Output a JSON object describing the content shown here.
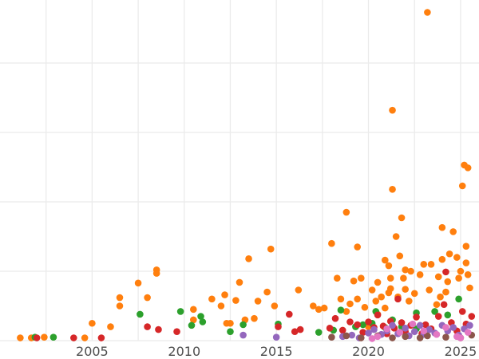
{
  "chart_data": {
    "type": "scatter",
    "title": "",
    "xlabel": "",
    "ylabel": "",
    "xlim": [
      2000.0,
      2026.0
    ],
    "ylim": [
      0,
      500
    ],
    "grid": true,
    "legend": "none",
    "x_ticks": [
      {
        "value": 2005,
        "label": "2005"
      },
      {
        "value": 2010,
        "label": "2010"
      },
      {
        "value": 2015,
        "label": "2015"
      },
      {
        "value": 2020,
        "label": "2020"
      },
      {
        "value": 2025,
        "label": "2025"
      }
    ],
    "y_gridlines": [
      0,
      100,
      200,
      300,
      400,
      500
    ],
    "series": [
      {
        "color": "#ff7f0e",
        "points": [
          [
            2001.1,
            4
          ],
          [
            2001.7,
            4
          ],
          [
            2002.4,
            5
          ],
          [
            2004.6,
            4
          ],
          [
            2005.0,
            25
          ],
          [
            2006.0,
            20
          ],
          [
            2006.5,
            50
          ],
          [
            2006.5,
            62
          ],
          [
            2007.5,
            83
          ],
          [
            2008.0,
            62
          ],
          [
            2008.5,
            102
          ],
          [
            2008.5,
            97
          ],
          [
            2010.5,
            45
          ],
          [
            2010.5,
            30
          ],
          [
            2011.5,
            60
          ],
          [
            2012.0,
            50
          ],
          [
            2012.2,
            66
          ],
          [
            2012.3,
            25
          ],
          [
            2012.5,
            25
          ],
          [
            2012.8,
            58
          ],
          [
            2013.0,
            84
          ],
          [
            2013.3,
            30
          ],
          [
            2013.5,
            118
          ],
          [
            2013.8,
            32
          ],
          [
            2014.0,
            57
          ],
          [
            2014.5,
            70
          ],
          [
            2014.7,
            132
          ],
          [
            2014.9,
            50
          ],
          [
            2016.2,
            73
          ],
          [
            2017.0,
            50
          ],
          [
            2017.3,
            45
          ],
          [
            2017.6,
            47
          ],
          [
            2018.0,
            140
          ],
          [
            2018.3,
            90
          ],
          [
            2018.5,
            60
          ],
          [
            2018.8,
            42
          ],
          [
            2018.8,
            185
          ],
          [
            2019.0,
            53
          ],
          [
            2019.2,
            86
          ],
          [
            2019.4,
            135
          ],
          [
            2019.4,
            60
          ],
          [
            2019.6,
            90
          ],
          [
            2019.8,
            48
          ],
          [
            2020.0,
            20
          ],
          [
            2020.2,
            73
          ],
          [
            2020.4,
            57
          ],
          [
            2020.5,
            38
          ],
          [
            2020.5,
            84
          ],
          [
            2020.7,
            63
          ],
          [
            2020.9,
            47
          ],
          [
            2020.9,
            116
          ],
          [
            2021.1,
            69
          ],
          [
            2021.1,
            108
          ],
          [
            2021.2,
            90
          ],
          [
            2021.2,
            75
          ],
          [
            2021.3,
            218
          ],
          [
            2021.3,
            332
          ],
          [
            2021.5,
            150
          ],
          [
            2021.6,
            63
          ],
          [
            2021.7,
            122
          ],
          [
            2021.8,
            177
          ],
          [
            2021.9,
            90
          ],
          [
            2022.0,
            74
          ],
          [
            2022.0,
            102
          ],
          [
            2022.2,
            57
          ],
          [
            2022.3,
            100
          ],
          [
            2022.5,
            68
          ],
          [
            2022.8,
            95
          ],
          [
            2023.0,
            110
          ],
          [
            2023.2,
            473
          ],
          [
            2023.3,
            73
          ],
          [
            2023.4,
            110
          ],
          [
            2023.7,
            52
          ],
          [
            2023.8,
            92
          ],
          [
            2023.9,
            63
          ],
          [
            2024.0,
            117
          ],
          [
            2024.0,
            163
          ],
          [
            2024.2,
            70
          ],
          [
            2024.3,
            85
          ],
          [
            2024.4,
            125
          ],
          [
            2024.6,
            157
          ],
          [
            2024.8,
            120
          ],
          [
            2024.9,
            90
          ],
          [
            2025.0,
            100
          ],
          [
            2025.1,
            223
          ],
          [
            2025.2,
            253
          ],
          [
            2025.3,
            136
          ],
          [
            2025.3,
            112
          ],
          [
            2025.4,
            249
          ],
          [
            2025.4,
            95
          ],
          [
            2025.5,
            76
          ]
        ]
      },
      {
        "color": "#2ca02c",
        "points": [
          [
            2001.9,
            5
          ],
          [
            2002.9,
            5
          ],
          [
            2007.6,
            38
          ],
          [
            2009.8,
            42
          ],
          [
            2010.4,
            22
          ],
          [
            2010.9,
            35
          ],
          [
            2011.0,
            27
          ],
          [
            2012.5,
            13
          ],
          [
            2013.2,
            23
          ],
          [
            2015.1,
            24
          ],
          [
            2017.3,
            12
          ],
          [
            2018.1,
            15
          ],
          [
            2018.5,
            44
          ],
          [
            2019.3,
            20
          ],
          [
            2019.7,
            23
          ],
          [
            2020.2,
            25
          ],
          [
            2020.4,
            42
          ],
          [
            2020.9,
            19
          ],
          [
            2021.3,
            30
          ],
          [
            2021.8,
            20
          ],
          [
            2022.6,
            40
          ],
          [
            2022.6,
            17
          ],
          [
            2023.6,
            42
          ],
          [
            2024.3,
            37
          ],
          [
            2024.9,
            60
          ]
        ]
      },
      {
        "color": "#d62728",
        "points": [
          [
            2002.0,
            4
          ],
          [
            2004.0,
            4
          ],
          [
            2005.5,
            4
          ],
          [
            2008.0,
            20
          ],
          [
            2008.6,
            16
          ],
          [
            2009.6,
            13
          ],
          [
            2015.1,
            20
          ],
          [
            2015.7,
            38
          ],
          [
            2016.0,
            13
          ],
          [
            2016.3,
            16
          ],
          [
            2017.9,
            18
          ],
          [
            2018.2,
            32
          ],
          [
            2018.6,
            15
          ],
          [
            2019.0,
            27
          ],
          [
            2019.4,
            23
          ],
          [
            2019.7,
            12
          ],
          [
            2020.0,
            27
          ],
          [
            2020.3,
            19
          ],
          [
            2020.5,
            37
          ],
          [
            2020.8,
            21
          ],
          [
            2021.0,
            10
          ],
          [
            2021.2,
            28
          ],
          [
            2021.4,
            18
          ],
          [
            2021.6,
            60
          ],
          [
            2021.8,
            26
          ],
          [
            2022.0,
            13
          ],
          [
            2022.3,
            22
          ],
          [
            2022.6,
            34
          ],
          [
            2022.9,
            10
          ],
          [
            2023.1,
            23
          ],
          [
            2023.4,
            17
          ],
          [
            2023.8,
            35
          ],
          [
            2024.1,
            52
          ],
          [
            2024.2,
            99
          ],
          [
            2024.5,
            26
          ],
          [
            2024.8,
            14
          ],
          [
            2025.1,
            42
          ],
          [
            2025.3,
            24
          ],
          [
            2025.6,
            35
          ]
        ]
      },
      {
        "color": "#9467bd",
        "points": [
          [
            2013.2,
            8
          ],
          [
            2015.0,
            5
          ],
          [
            2018.6,
            6
          ],
          [
            2019.1,
            8
          ],
          [
            2019.5,
            4
          ],
          [
            2020.0,
            11
          ],
          [
            2020.3,
            16
          ],
          [
            2020.7,
            9
          ],
          [
            2021.0,
            14
          ],
          [
            2021.3,
            22
          ],
          [
            2021.6,
            10
          ],
          [
            2022.0,
            18
          ],
          [
            2022.2,
            7
          ],
          [
            2022.5,
            13
          ],
          [
            2022.8,
            22
          ],
          [
            2023.0,
            9
          ],
          [
            2023.3,
            16
          ],
          [
            2023.6,
            11
          ],
          [
            2024.0,
            22
          ],
          [
            2024.3,
            14
          ],
          [
            2024.6,
            19
          ],
          [
            2024.9,
            8
          ],
          [
            2025.2,
            17
          ],
          [
            2025.5,
            22
          ]
        ]
      },
      {
        "color": "#8c564b",
        "points": [
          [
            2018.0,
            5
          ],
          [
            2018.8,
            7
          ],
          [
            2019.6,
            4
          ],
          [
            2020.5,
            7
          ],
          [
            2021.3,
            4
          ],
          [
            2022.0,
            6
          ],
          [
            2022.8,
            4
          ],
          [
            2023.2,
            7
          ],
          [
            2024.2,
            5
          ],
          [
            2025.0,
            4
          ],
          [
            2025.6,
            8
          ]
        ]
      },
      {
        "color": "#e377c2",
        "points": [
          [
            2020.2,
            3
          ],
          [
            2020.5,
            6
          ],
          [
            2021.0,
            17
          ],
          [
            2021.7,
            12
          ],
          [
            2022.4,
            24
          ],
          [
            2023.0,
            14
          ],
          [
            2023.7,
            9
          ],
          [
            2024.2,
            19
          ],
          [
            2024.8,
            6
          ],
          [
            2025.0,
            4
          ],
          [
            2025.4,
            12
          ]
        ]
      }
    ]
  }
}
